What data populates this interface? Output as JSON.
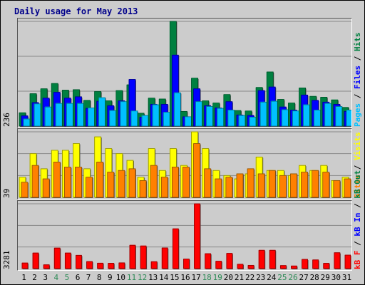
{
  "title": "Daily usage for May 2013",
  "colors": {
    "hits": "#008040",
    "files": "#0000ff",
    "pages": "#00c0ff",
    "visits": "#ffff00",
    "sites": "#ff8000",
    "kb_in": "#0000ff",
    "kb_out": "#008040",
    "kb_f": "#ff0000",
    "weekend_label": "#2e8b57"
  },
  "panels": {
    "top": {
      "ymax": "236",
      "legend": [
        {
          "text": "Pages",
          "color": "#00c0ff"
        },
        {
          "text": "Files",
          "color": "#0000ff"
        },
        {
          "text": "Hits",
          "color": "#008040"
        }
      ]
    },
    "middle": {
      "ymax": "39",
      "legend": [
        {
          "text": "Sites",
          "color": "#ff8000"
        },
        {
          "text": "Visits",
          "color": "#ffff00"
        }
      ]
    },
    "bottom": {
      "ymax": "3281",
      "legend": [
        {
          "text": "kB F",
          "color": "#ff0000"
        },
        {
          "text": "kB In",
          "color": "#0000ff"
        },
        {
          "text": "kB Out",
          "color": "#008040"
        }
      ]
    }
  },
  "chart_data": [
    {
      "type": "bar",
      "title": "Daily usage for May 2013",
      "ylim": [
        0,
        236
      ],
      "categories": [
        "1",
        "2",
        "3",
        "4",
        "5",
        "6",
        "7",
        "8",
        "9",
        "10",
        "11",
        "12",
        "13",
        "14",
        "15",
        "16",
        "17",
        "18",
        "19",
        "20",
        "21",
        "22",
        "23",
        "24",
        "25",
        "26",
        "27",
        "28",
        "29",
        "30",
        "31"
      ],
      "weekend_days": [
        "4",
        "5",
        "11",
        "12",
        "18",
        "19",
        "25",
        "26"
      ],
      "series": [
        {
          "name": "Hits",
          "values": [
            30,
            73,
            84,
            96,
            81,
            82,
            58,
            78,
            57,
            80,
            93,
            29,
            63,
            61,
            236,
            33,
            108,
            57,
            52,
            71,
            35,
            34,
            87,
            122,
            60,
            52,
            86,
            67,
            65,
            59,
            42
          ]
        },
        {
          "name": "Files",
          "values": [
            23,
            53,
            63,
            76,
            63,
            66,
            40,
            56,
            46,
            57,
            105,
            20,
            49,
            49,
            160,
            21,
            84,
            46,
            41,
            55,
            25,
            24,
            80,
            88,
            43,
            36,
            70,
            58,
            54,
            49,
            33
          ]
        },
        {
          "name": "Pages",
          "values": [
            16,
            50,
            43,
            51,
            51,
            51,
            41,
            64,
            35,
            55,
            34,
            24,
            48,
            31,
            75,
            21,
            55,
            44,
            40,
            36,
            24,
            20,
            54,
            56,
            37,
            34,
            48,
            36,
            51,
            44,
            36
          ]
        }
      ]
    },
    {
      "type": "bar",
      "ylim": [
        0,
        39
      ],
      "categories": [
        "1",
        "2",
        "3",
        "4",
        "5",
        "6",
        "7",
        "8",
        "9",
        "10",
        "11",
        "12",
        "13",
        "14",
        "15",
        "16",
        "17",
        "18",
        "19",
        "20",
        "21",
        "22",
        "23",
        "24",
        "25",
        "26",
        "27",
        "28",
        "29",
        "30",
        "31"
      ],
      "series": [
        {
          "name": "Visits",
          "values": [
            12,
            26,
            17,
            28,
            28,
            32,
            17,
            36,
            29,
            26,
            22,
            12,
            29,
            16,
            29,
            19,
            39,
            29,
            16,
            13,
            11,
            14,
            24,
            16,
            16,
            13,
            19,
            16,
            19,
            10,
            12
          ]
        },
        {
          "name": "Sites",
          "values": [
            9,
            19,
            11,
            21,
            18,
            18,
            12,
            21,
            15,
            16,
            17,
            10,
            19,
            12,
            18,
            18,
            32,
            17,
            11,
            12,
            14,
            17,
            14,
            16,
            13,
            14,
            15,
            16,
            15,
            10,
            11
          ]
        }
      ]
    },
    {
      "type": "bar",
      "ylim": [
        0,
        3281
      ],
      "categories": [
        "1",
        "2",
        "3",
        "4",
        "5",
        "6",
        "7",
        "8",
        "9",
        "10",
        "11",
        "12",
        "13",
        "14",
        "15",
        "16",
        "17",
        "18",
        "19",
        "20",
        "21",
        "22",
        "23",
        "24",
        "25",
        "26",
        "27",
        "28",
        "29",
        "30",
        "31"
      ],
      "series": [
        {
          "name": "kB F",
          "values": [
            283,
            788,
            192,
            1038,
            788,
            672,
            358,
            275,
            269,
            291,
            1182,
            1146,
            350,
            1046,
            2014,
            485,
            3281,
            755,
            373,
            769,
            221,
            164,
            927,
            927,
            154,
            133,
            467,
            440,
            267,
            803,
            683
          ]
        }
      ]
    }
  ]
}
